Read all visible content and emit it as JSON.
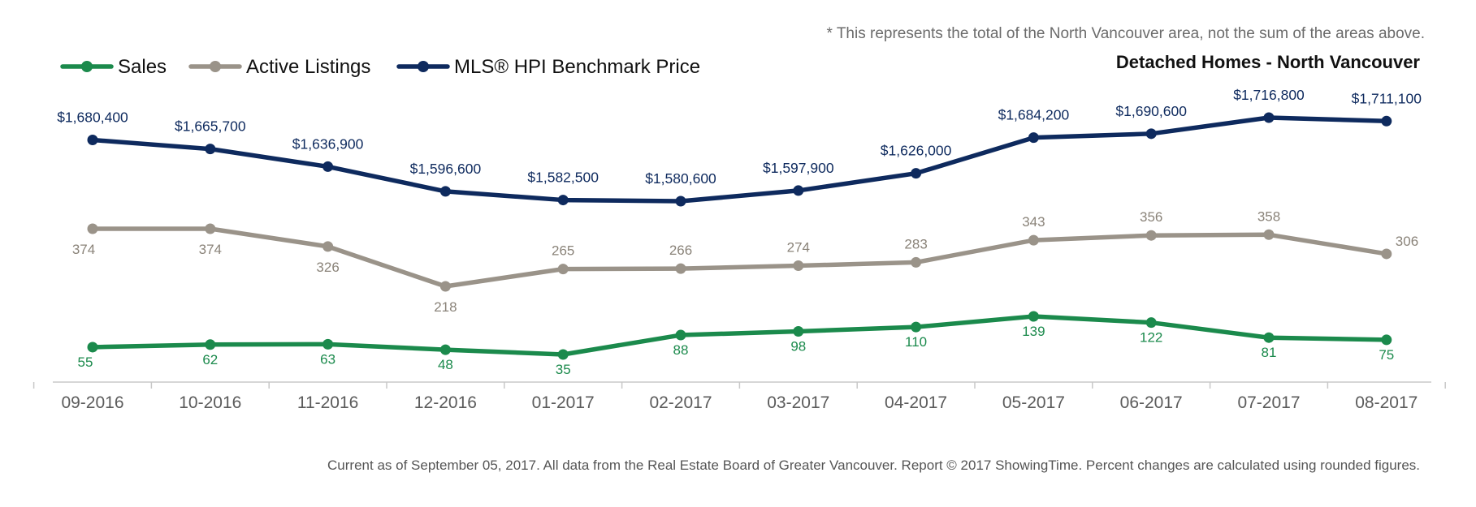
{
  "note": "* This represents the total of the North Vancouver area, not the sum of the areas above.",
  "footer": "Current as of September 05, 2017. All data from the Real Estate Board of Greater Vancouver. Report © 2017 ShowingTime. Percent changes are calculated using rounded figures.",
  "chart_data": {
    "type": "line",
    "title": "Detached Homes - North Vancouver",
    "legend_position": "top-left",
    "grid": false,
    "categories": [
      "09-2016",
      "10-2016",
      "11-2016",
      "12-2016",
      "01-2017",
      "02-2017",
      "03-2017",
      "04-2017",
      "05-2017",
      "06-2017",
      "07-2017",
      "08-2017"
    ],
    "series": [
      {
        "name": "Sales",
        "color": "#1b8a4c",
        "values": [
          55,
          62,
          63,
          48,
          35,
          88,
          98,
          110,
          139,
          122,
          81,
          75
        ],
        "labels": [
          "55",
          "62",
          "63",
          "48",
          "35",
          "88",
          "98",
          "110",
          "139",
          "122",
          "81",
          "75"
        ]
      },
      {
        "name": "Active Listings",
        "color": "#9a9389",
        "values": [
          374,
          374,
          326,
          218,
          265,
          266,
          274,
          283,
          343,
          356,
          358,
          306
        ],
        "labels": [
          "374",
          "374",
          "326",
          "218",
          "265",
          "266",
          "274",
          "283",
          "343",
          "356",
          "358",
          "306"
        ]
      },
      {
        "name": "MLS® HPI Benchmark Price",
        "color": "#0e2a5e",
        "values": [
          1680400,
          1665700,
          1636900,
          1596600,
          1582500,
          1580600,
          1597900,
          1626000,
          1684200,
          1690600,
          1716800,
          1711100
        ],
        "labels": [
          "$1,680,400",
          "$1,665,700",
          "$1,636,900",
          "$1,596,600",
          "$1,582,500",
          "$1,580,600",
          "$1,597,900",
          "$1,626,000",
          "$1,684,200",
          "$1,690,600",
          "$1,716,800",
          "$1,711,100"
        ]
      }
    ]
  }
}
